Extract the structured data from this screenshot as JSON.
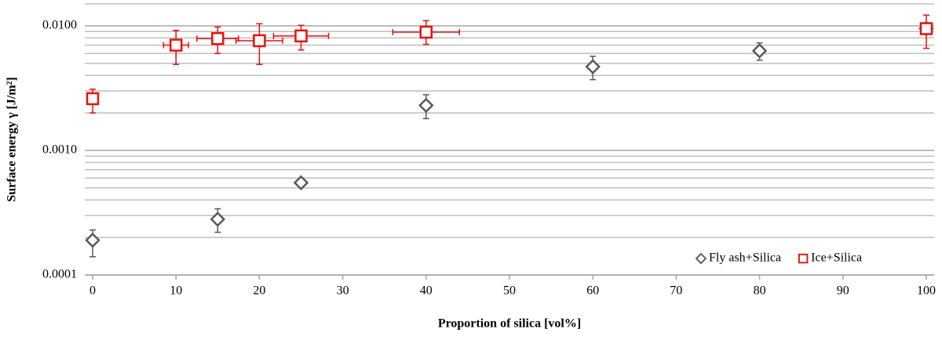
{
  "chart_data": {
    "type": "scatter",
    "x_label": "Proportion of silica [vol%]",
    "y_label": "Surface energy γ [J/m²]",
    "log_y": true,
    "xlim": [
      0,
      100
    ],
    "xticks": [
      0,
      10,
      20,
      30,
      40,
      50,
      60,
      70,
      80,
      90,
      100
    ],
    "ylim": [
      0.0001,
      0.015
    ],
    "yticks": [
      0.0001,
      {
        "value": 0.001,
        "label": "0.0010"
      },
      {
        "value": 0.01,
        "label": "0.0100"
      }
    ],
    "minor_gridlines": [
      0.0002,
      0.0003,
      0.0004,
      0.0005,
      0.0006,
      0.0007,
      0.0008,
      0.0009,
      0.002,
      0.003,
      0.004,
      0.005,
      0.006,
      0.007,
      0.008,
      0.009
    ],
    "grid": true,
    "legend": "bottom-right",
    "series": [
      {
        "name": "Fly ash+Silica",
        "color": "#595959",
        "marker": "diamond",
        "x": [
          0,
          15,
          25,
          40,
          60,
          80,
          100
        ],
        "values": [
          0.00019,
          0.00028,
          0.00055,
          0.0023,
          0.0047,
          0.0063,
          0.0095
        ],
        "y_upper": [
          0.00023,
          0.00034,
          null,
          0.0028,
          0.0057,
          0.0073,
          null
        ],
        "y_lower": [
          0.00014,
          0.00022,
          null,
          0.0018,
          0.0037,
          0.0053,
          null
        ],
        "x_err": [
          null,
          null,
          null,
          null,
          null,
          null,
          null
        ]
      },
      {
        "name": "Ice+Silica",
        "color": "#e8110f",
        "marker": "square",
        "x": [
          0,
          10,
          15,
          20,
          25,
          40,
          100
        ],
        "values": [
          0.0026,
          0.007,
          0.0079,
          0.0076,
          0.0083,
          0.0089,
          0.0095
        ],
        "y_upper": [
          0.0031,
          0.0092,
          0.0098,
          0.0104,
          0.0101,
          0.011,
          0.0122
        ],
        "y_lower": [
          0.002,
          0.0049,
          0.006,
          0.0049,
          0.0064,
          0.0071,
          0.0066
        ],
        "x_err": [
          null,
          1.5,
          2.5,
          2.8,
          3.3,
          4,
          null
        ]
      }
    ]
  }
}
